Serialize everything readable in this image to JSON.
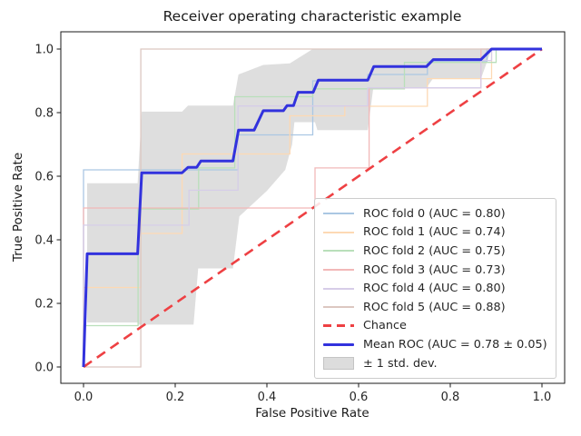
{
  "figure": {
    "title": "Receiver operating characteristic example",
    "xlabel": "False Positive Rate",
    "ylabel": "True Positive Rate"
  },
  "axes": {
    "x_tick_labels": [
      "0.0",
      "0.2",
      "0.4",
      "0.6",
      "0.8",
      "1.0"
    ],
    "x_tick_values": [
      0,
      0.2,
      0.4,
      0.6,
      0.8,
      1.0
    ],
    "y_tick_labels": [
      "0.0",
      "0.2",
      "0.4",
      "0.6",
      "0.8",
      "1.0"
    ],
    "y_tick_values": [
      0,
      0.2,
      0.4,
      0.6,
      0.8,
      1.0
    ],
    "xlim": [
      -0.05,
      1.05
    ],
    "ylim": [
      -0.05,
      1.05
    ]
  },
  "colors": {
    "mean": "#3232dd",
    "chance": "#ee4043",
    "band_fill": "rgba(128,128,128,0.26)",
    "spine": "#1a1a1a",
    "text": "#262626",
    "fold0": "#aac7e3",
    "fold1": "#fdd9b4",
    "fold2": "#b9dfba",
    "fold3": "#f2b8b8",
    "fold4": "#d6cde8",
    "fold5": "#dcc7c1"
  },
  "legend": {
    "position": "lower right",
    "entries": [
      {
        "label": "ROC fold 0 (AUC = 0.80)",
        "type": "line",
        "color": "#aac7e3"
      },
      {
        "label": "ROC fold 1 (AUC = 0.74)",
        "type": "line",
        "color": "#fdd9b4"
      },
      {
        "label": "ROC fold 2 (AUC = 0.75)",
        "type": "line",
        "color": "#b9dfba"
      },
      {
        "label": "ROC fold 3 (AUC = 0.73)",
        "type": "line",
        "color": "#f2b8b8"
      },
      {
        "label": "ROC fold 4 (AUC = 0.80)",
        "type": "line",
        "color": "#d6cde8"
      },
      {
        "label": "ROC fold 5 (AUC = 0.88)",
        "type": "line",
        "color": "#dcc7c1"
      },
      {
        "label": "Chance",
        "type": "dashed",
        "color": "#ee4043"
      },
      {
        "label": "Mean ROC (AUC = 0.78 ± 0.05)",
        "type": "thick",
        "color": "#3232dd"
      },
      {
        "label": "± 1 std. dev.",
        "type": "patch",
        "color": "#dcdcdc"
      }
    ]
  },
  "chart_data": {
    "type": "line",
    "title": "Receiver operating characteristic example",
    "xlabel": "False Positive Rate",
    "ylabel": "True Positive Rate",
    "xlim": [
      -0.05,
      1.05
    ],
    "ylim": [
      -0.05,
      1.05
    ],
    "grid": false,
    "legend_position": "lower right",
    "series": [
      {
        "name": "ROC fold 0",
        "auc": 0.8,
        "color": "#aac7e3",
        "points": [
          [
            0,
            0
          ],
          [
            0,
            0.62
          ],
          [
            0.337,
            0.62
          ],
          [
            0.337,
            0.73
          ],
          [
            0.5,
            0.73
          ],
          [
            0.5,
            0.9
          ],
          [
            0.62,
            0.9
          ],
          [
            0.62,
            0.92
          ],
          [
            0.75,
            0.92
          ],
          [
            0.75,
            0.96
          ],
          [
            0.88,
            0.96
          ],
          [
            0.88,
            1
          ],
          [
            1,
            1
          ]
        ]
      },
      {
        "name": "ROC fold 1",
        "auc": 0.74,
        "color": "#fdd9b4",
        "points": [
          [
            0,
            0
          ],
          [
            0,
            0.25
          ],
          [
            0.125,
            0.25
          ],
          [
            0.125,
            0.42
          ],
          [
            0.215,
            0.42
          ],
          [
            0.215,
            0.67
          ],
          [
            0.45,
            0.67
          ],
          [
            0.45,
            0.79
          ],
          [
            0.57,
            0.79
          ],
          [
            0.57,
            0.82
          ],
          [
            0.75,
            0.82
          ],
          [
            0.75,
            0.907
          ],
          [
            0.89,
            0.907
          ],
          [
            0.89,
            1
          ],
          [
            1,
            1
          ]
        ]
      },
      {
        "name": "ROC fold 2",
        "auc": 0.75,
        "color": "#b9dfba",
        "points": [
          [
            0,
            0
          ],
          [
            0,
            0.13
          ],
          [
            0.119,
            0.13
          ],
          [
            0.119,
            0.497
          ],
          [
            0.251,
            0.497
          ],
          [
            0.251,
            0.626
          ],
          [
            0.33,
            0.626
          ],
          [
            0.33,
            0.85
          ],
          [
            0.5,
            0.85
          ],
          [
            0.5,
            0.875
          ],
          [
            0.7,
            0.875
          ],
          [
            0.7,
            0.958
          ],
          [
            0.9,
            0.958
          ],
          [
            0.9,
            1
          ],
          [
            1,
            1
          ]
        ]
      },
      {
        "name": "ROC fold 3",
        "auc": 0.73,
        "color": "#f2b8b8",
        "points": [
          [
            0,
            0
          ],
          [
            0,
            0.5
          ],
          [
            0.505,
            0.5
          ],
          [
            0.505,
            0.626
          ],
          [
            0.623,
            0.626
          ],
          [
            0.623,
            0.878
          ],
          [
            0.867,
            0.878
          ],
          [
            0.867,
            1
          ],
          [
            1,
            1
          ]
        ]
      },
      {
        "name": "ROC fold 4",
        "auc": 0.8,
        "color": "#d6cde8",
        "points": [
          [
            0,
            0
          ],
          [
            0,
            0.446
          ],
          [
            0.23,
            0.446
          ],
          [
            0.23,
            0.556
          ],
          [
            0.337,
            0.556
          ],
          [
            0.337,
            0.821
          ],
          [
            0.62,
            0.821
          ],
          [
            0.62,
            0.878
          ],
          [
            0.867,
            0.878
          ],
          [
            0.867,
            0.964
          ],
          [
            0.89,
            0.964
          ],
          [
            0.89,
            1
          ],
          [
            1,
            1
          ]
        ]
      },
      {
        "name": "ROC fold 5",
        "auc": 0.88,
        "color": "#dcc7c1",
        "points": [
          [
            0,
            0
          ],
          [
            0.125,
            0
          ],
          [
            0.125,
            1
          ],
          [
            1,
            1
          ]
        ]
      }
    ],
    "chance_line": {
      "name": "Chance",
      "color": "#ee4043",
      "style": "dashed",
      "points": [
        [
          0,
          0
        ],
        [
          1,
          1
        ]
      ]
    },
    "mean_roc": {
      "name": "Mean ROC",
      "auc": 0.78,
      "auc_std": 0.05,
      "color": "#3232dd",
      "points": [
        [
          0,
          0
        ],
        [
          0.008,
          0.356
        ],
        [
          0.118,
          0.356
        ],
        [
          0.127,
          0.611
        ],
        [
          0.215,
          0.611
        ],
        [
          0.228,
          0.628
        ],
        [
          0.247,
          0.628
        ],
        [
          0.256,
          0.648
        ],
        [
          0.326,
          0.648
        ],
        [
          0.338,
          0.745
        ],
        [
          0.372,
          0.745
        ],
        [
          0.392,
          0.806
        ],
        [
          0.436,
          0.806
        ],
        [
          0.444,
          0.822
        ],
        [
          0.458,
          0.822
        ],
        [
          0.468,
          0.864
        ],
        [
          0.501,
          0.864
        ],
        [
          0.512,
          0.902
        ],
        [
          0.62,
          0.902
        ],
        [
          0.633,
          0.945
        ],
        [
          0.748,
          0.945
        ],
        [
          0.763,
          0.967
        ],
        [
          0.867,
          0.967
        ],
        [
          0.89,
          1
        ],
        [
          1,
          1
        ]
      ]
    },
    "std_band": {
      "name": "± 1 std. dev.",
      "upper": [
        [
          0.008,
          0.578
        ],
        [
          0.118,
          0.578
        ],
        [
          0.127,
          0.803
        ],
        [
          0.215,
          0.803
        ],
        [
          0.228,
          0.822
        ],
        [
          0.326,
          0.822
        ],
        [
          0.338,
          0.92
        ],
        [
          0.392,
          0.95
        ],
        [
          0.45,
          0.955
        ],
        [
          0.5,
          1
        ],
        [
          0.89,
          1
        ]
      ],
      "lower": [
        [
          0.008,
          0.14
        ],
        [
          0.12,
          0.14
        ],
        [
          0.12,
          0.133
        ],
        [
          0.24,
          0.133
        ],
        [
          0.25,
          0.31
        ],
        [
          0.326,
          0.31
        ],
        [
          0.34,
          0.474
        ],
        [
          0.4,
          0.554
        ],
        [
          0.44,
          0.62
        ],
        [
          0.455,
          0.7
        ],
        [
          0.46,
          0.77
        ],
        [
          0.505,
          0.77
        ],
        [
          0.51,
          0.745
        ],
        [
          0.62,
          0.745
        ],
        [
          0.632,
          0.878
        ],
        [
          0.748,
          0.878
        ],
        [
          0.762,
          0.907
        ],
        [
          0.867,
          0.907
        ],
        [
          0.89,
          1
        ]
      ]
    }
  }
}
